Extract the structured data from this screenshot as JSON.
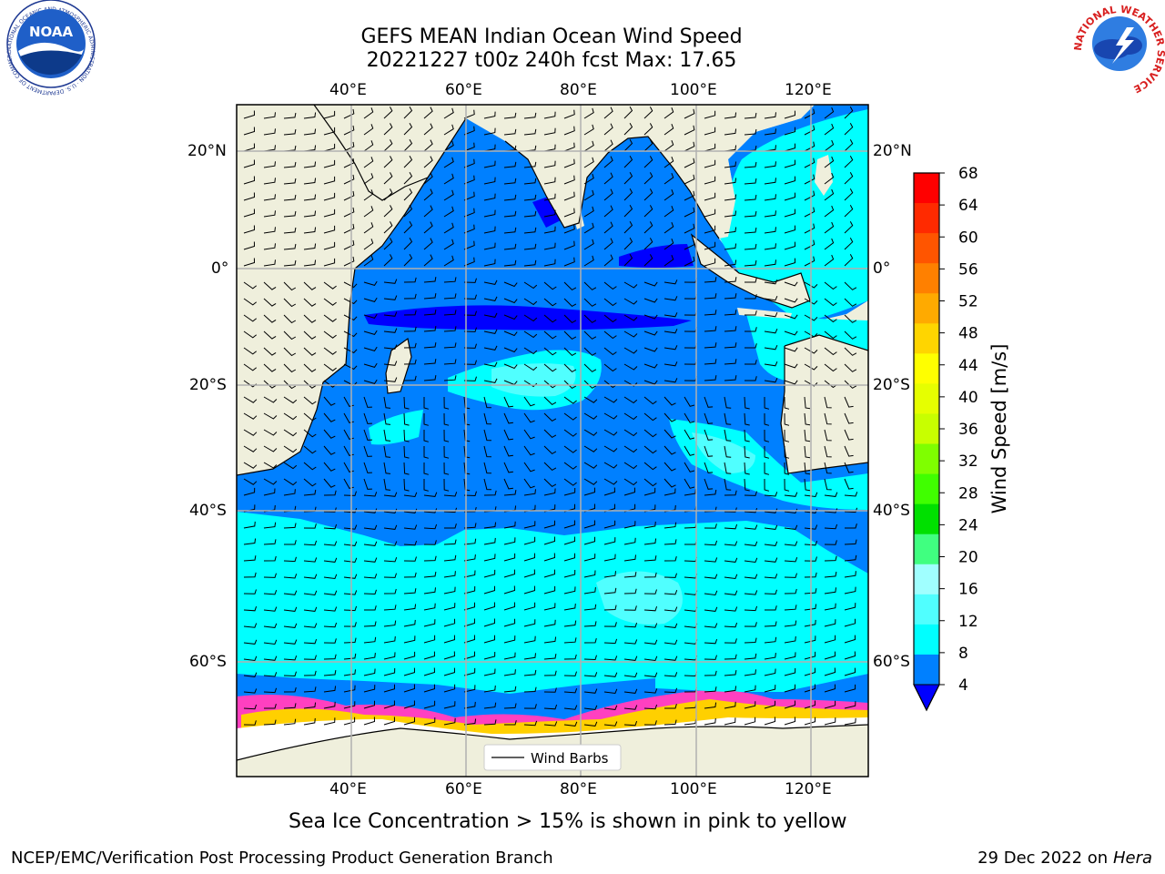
{
  "title_line1": "GEFS MEAN Indian Ocean Wind Speed",
  "title_line2": "20221227 t00z 240h fcst   Max: 17.65",
  "lon_ticks": [
    "40°E",
    "60°E",
    "80°E",
    "100°E",
    "120°E"
  ],
  "lat_ticks_left": [
    "20°N",
    "0°",
    "20°S",
    "40°S",
    "60°S"
  ],
  "lat_ticks_right": [
    "20°N",
    "0°",
    "20°S",
    "40°S",
    "60°S"
  ],
  "legend_label": "Wind Barbs",
  "colorbar": {
    "label": "Wind Speed [m/s]",
    "ticks": [
      "68",
      "64",
      "60",
      "56",
      "52",
      "48",
      "44",
      "40",
      "36",
      "32",
      "28",
      "24",
      "20",
      "16",
      "12",
      "8",
      "4"
    ],
    "colors": [
      "#ff0000",
      "#ff2a00",
      "#ff5500",
      "#ff8000",
      "#ffaa00",
      "#ffd500",
      "#ffff00",
      "#e6ff00",
      "#c8ff00",
      "#7fff00",
      "#40ff00",
      "#00e000",
      "#40ff80",
      "#a0ffff",
      "#50ffff",
      "#00ffff",
      "#0080ff"
    ],
    "under_color": "#0000ff"
  },
  "colors": {
    "land": "#efefdc",
    "ocean_low": "#0080ff",
    "ocean_lowest": "#0000ff",
    "ocean_mid": "#00ffff",
    "ocean_high": "#50ffff",
    "ice": "#ff40c0",
    "grid": "#b0b0b0"
  },
  "caption": "Sea Ice Concentration > 15% is shown in pink to yellow",
  "footer_left": "NCEP/EMC/Verification Post Processing Product Generation Branch",
  "footer_right_prefix": "29 Dec 2022 on",
  "footer_right_host": "Hera",
  "logos": {
    "noaa_text": "NOAA",
    "noaa_ring": "NATIONAL OCEANIC AND ATMOSPHERIC ADMINISTRATION · U.S. DEPARTMENT OF COMMERCE",
    "nws_ring": "NATIONAL WEATHER SERVICE"
  }
}
